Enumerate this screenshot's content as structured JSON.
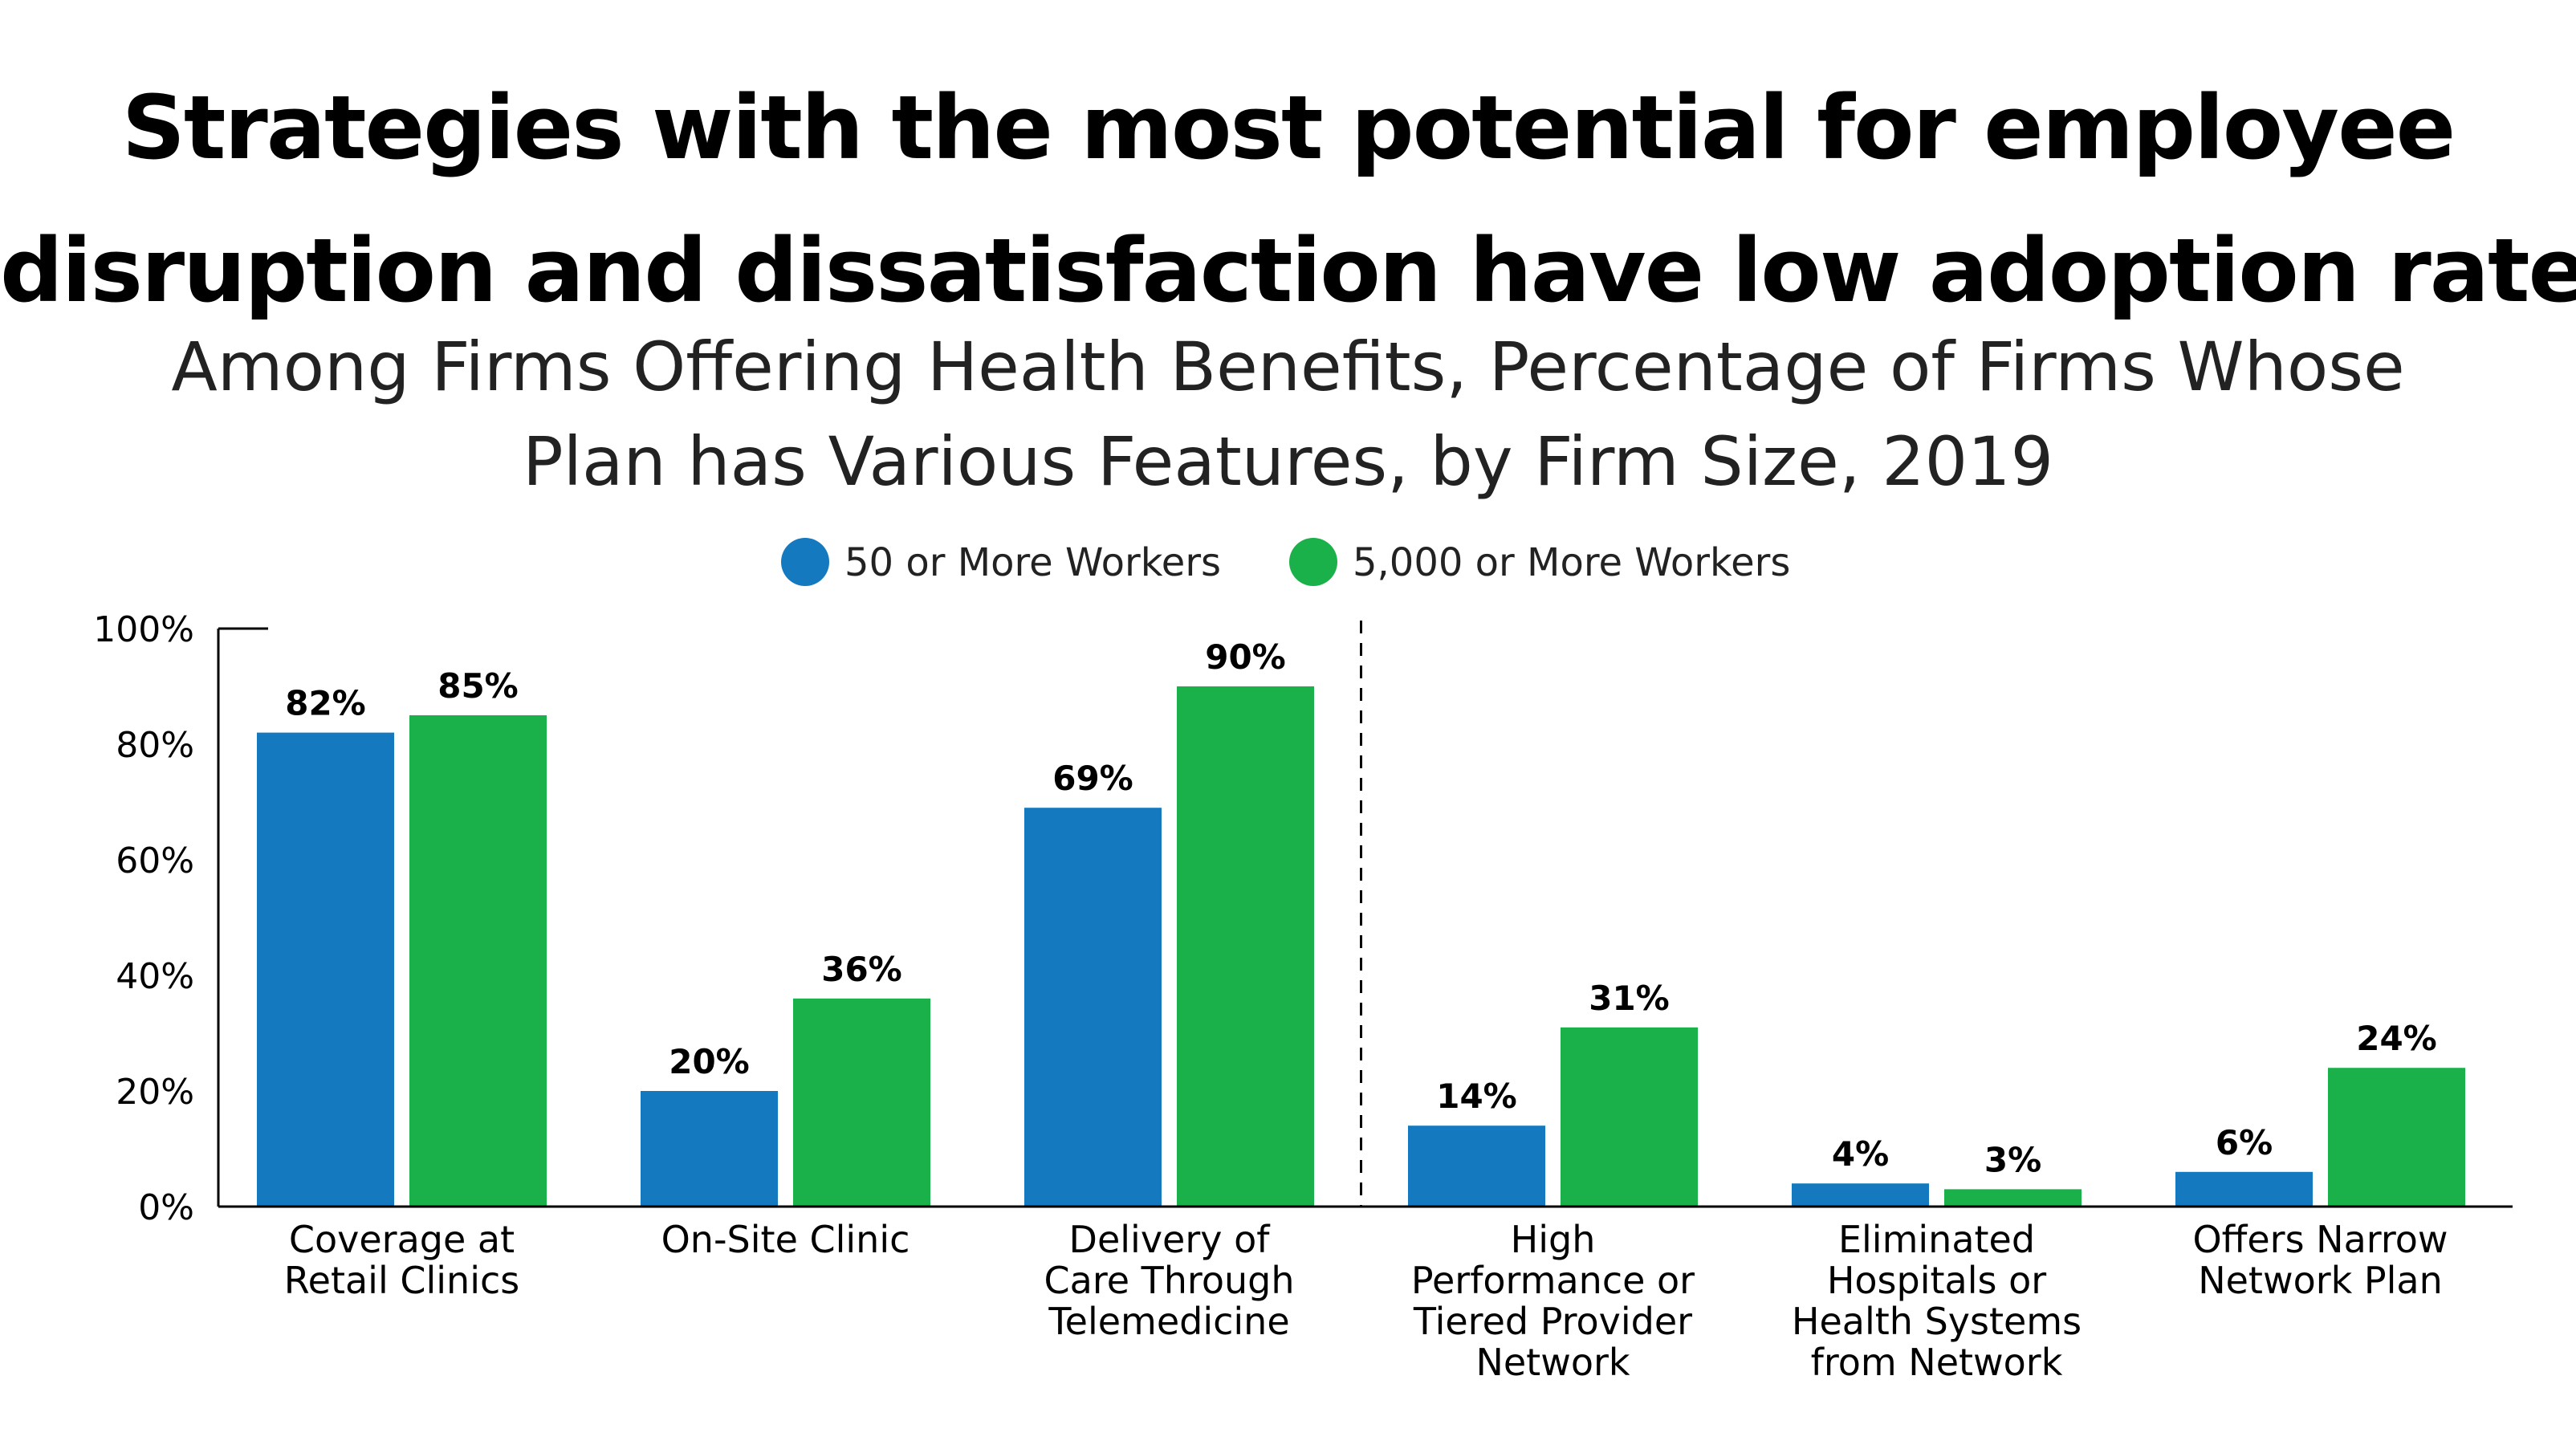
{
  "title": {
    "line1": "Strategies with the most potential for employee",
    "line2": "disruption and dissatisfaction have low adoption rates"
  },
  "subtitle": {
    "line1": "Among Firms Offering Health Benefits, Percentage of Firms Whose",
    "line2": "Plan has Various Features, by Firm Size, 2019"
  },
  "chart_data": {
    "type": "bar",
    "categories": [
      [
        "Coverage at",
        "Retail Clinics"
      ],
      [
        "On-Site Clinic"
      ],
      [
        "Delivery of",
        "Care Through",
        "Telemedicine"
      ],
      [
        "High",
        "Performance or",
        "Tiered Provider",
        "Network"
      ],
      [
        "Eliminated",
        "Hospitals or",
        "Health Systems",
        "from Network"
      ],
      [
        "Offers Narrow",
        "Network Plan"
      ]
    ],
    "series": [
      {
        "name": "50 or More Workers",
        "color": "#1479BF",
        "values": [
          82,
          20,
          69,
          14,
          4,
          6
        ],
        "labels": [
          "82%",
          "20%",
          "69%",
          "14%",
          "4%",
          "6%"
        ]
      },
      {
        "name": "5,000 or More Workers",
        "color": "#1BB14A",
        "values": [
          85,
          36,
          90,
          31,
          3,
          24
        ],
        "labels": [
          "85%",
          "36%",
          "90%",
          "31%",
          "3%",
          "24%"
        ]
      }
    ],
    "ylim": [
      0,
      100
    ],
    "yticks": [
      0,
      20,
      40,
      60,
      80,
      100
    ],
    "ytick_labels": [
      "0%",
      "20%",
      "40%",
      "60%",
      "80%",
      "100%"
    ],
    "grid": false,
    "legend_position": "top-center",
    "divider_after_category": 3,
    "divider_style": "dashed"
  }
}
